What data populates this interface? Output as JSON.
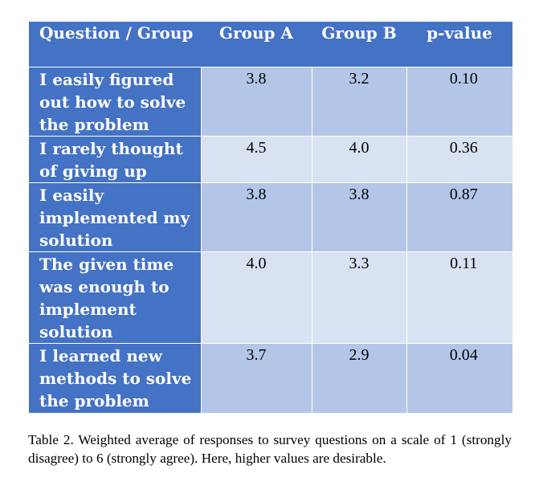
{
  "table": {
    "headers": [
      "Question / Group",
      "Group A",
      "Group B",
      "p-value"
    ],
    "rows": [
      {
        "question": "I easily figured out how to solve the problem",
        "group_a": "3.8",
        "group_b": "3.2",
        "p_value": "0.10"
      },
      {
        "question": "I rarely thought of giving up",
        "group_a": "4.5",
        "group_b": "4.0",
        "p_value": "0.36"
      },
      {
        "question": "I easily implemented my solution",
        "group_a": "3.8",
        "group_b": "3.8",
        "p_value": "0.87"
      },
      {
        "question": "The given time was enough to implement solution",
        "group_a": "4.0",
        "group_b": "3.3",
        "p_value": "0.11"
      },
      {
        "question": "I learned new methods to solve the problem",
        "group_a": "3.7",
        "group_b": "2.9",
        "p_value": "0.04"
      }
    ]
  },
  "caption": "Table 2.  Weighted average of responses to survey questions on a scale of 1 (strongly disagree) to 6 (strongly agree). Here, higher values are desirable."
}
